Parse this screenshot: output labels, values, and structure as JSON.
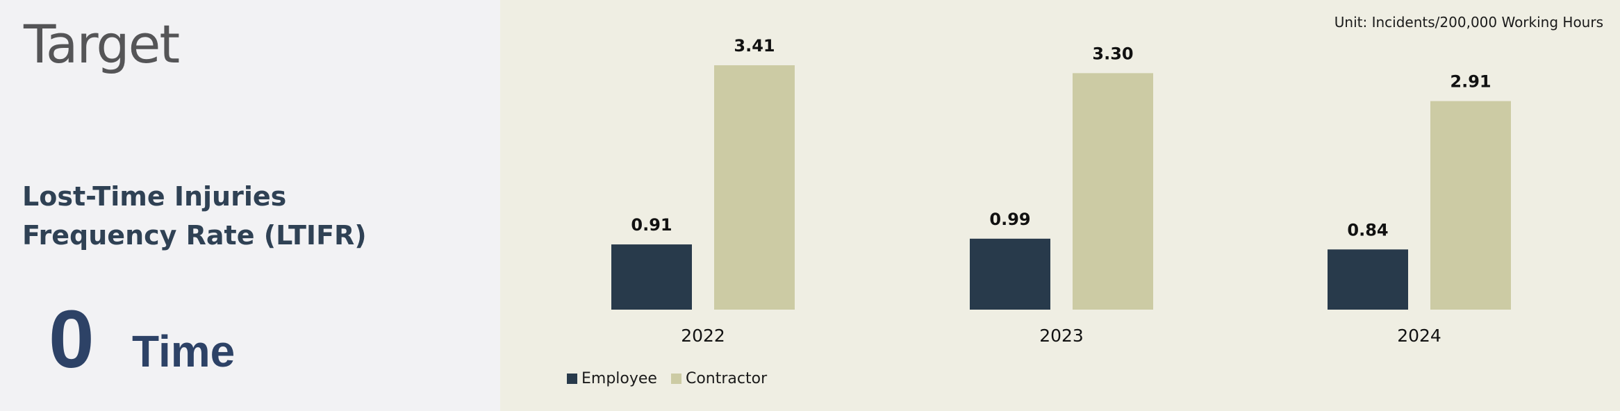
{
  "left": {
    "heading": "Target",
    "metric_line1": "Lost-Time Injuries",
    "metric_line2": "Frequency Rate (LTIFR)",
    "target_value": "0",
    "target_unit": "Time"
  },
  "colors": {
    "employee": "#283a4b",
    "contractor": "#cccba4",
    "panel_bg": "#efeee3"
  },
  "chart_data": {
    "type": "bar",
    "unit_note": "Unit: Incidents/200,000 Working Hours",
    "categories": [
      "2022",
      "2023",
      "2024"
    ],
    "series": [
      {
        "name": "Employee",
        "values": [
          0.91,
          0.99,
          0.84
        ],
        "labels": [
          "0.91",
          "0.99",
          "0.84"
        ]
      },
      {
        "name": "Contractor",
        "values": [
          3.41,
          3.3,
          2.91
        ],
        "labels": [
          "3.41",
          "3.30",
          "2.91"
        ]
      }
    ],
    "ylim": [
      0,
      3.41
    ],
    "legend_position": "bottom-left",
    "grid": false
  }
}
